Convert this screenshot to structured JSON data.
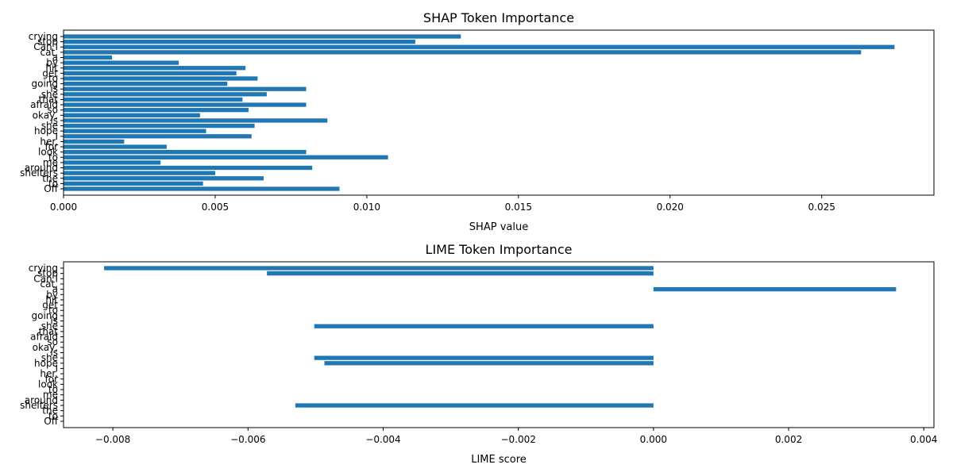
{
  "chart_data": [
    {
      "type": "bar",
      "orientation": "horizontal",
      "title": "SHAP Token Importance",
      "xlabel": "SHAP value",
      "ylabel": "",
      "xlim": [
        0,
        0.0287
      ],
      "xticks": [
        "0.000",
        "0.005",
        "0.010",
        "0.015",
        "0.020",
        "0.025"
      ],
      "xtick_values": [
        0,
        0.005,
        0.01,
        0.015,
        0.02,
        0.025
      ],
      "grid": false,
      "bar_color": "#1f77b4",
      "categories": [
        "crying",
        "stop",
        "Can I",
        "cat,",
        "a",
        "by",
        "hit",
        "get",
        "to",
        "going",
        "is",
        "she",
        "that",
        "afraid",
        "so",
        "okay,",
        "is",
        "she",
        "hope",
        "I",
        "her.",
        "for",
        "look",
        "to",
        "me",
        "around",
        "shelters",
        "the",
        "to",
        "Off"
      ],
      "values": [
        0.0131,
        0.0116,
        0.0274,
        0.0263,
        0.0016,
        0.0038,
        0.006,
        0.0057,
        0.0064,
        0.0054,
        0.008,
        0.0067,
        0.0059,
        0.008,
        0.0061,
        0.0045,
        0.0087,
        0.0063,
        0.0047,
        0.0062,
        0.002,
        0.0034,
        0.008,
        0.0107,
        0.0032,
        0.0082,
        0.005,
        0.0066,
        0.0046,
        0.0091
      ]
    },
    {
      "type": "bar",
      "orientation": "horizontal",
      "title": "LIME Token Importance",
      "xlabel": "LIME score",
      "ylabel": "",
      "xlim": [
        -0.00873,
        0.00415
      ],
      "xticks": [
        "−0.008",
        "−0.006",
        "−0.004",
        "−0.002",
        "0.000",
        "0.002",
        "0.004"
      ],
      "xtick_values": [
        -0.008,
        -0.006,
        -0.004,
        -0.002,
        0,
        0.002,
        0.004
      ],
      "grid": false,
      "bar_color": "#1f77b4",
      "categories": [
        "crying",
        "stop",
        "Can I",
        "cat,",
        "a",
        "by",
        "hit",
        "get",
        "to",
        "going",
        "is",
        "she",
        "that",
        "afraid",
        "so",
        "okay,",
        "is",
        "she",
        "hope",
        "I",
        "her.",
        "for",
        "look",
        "to",
        "me",
        "around",
        "shelters",
        "the",
        "to",
        "Off"
      ],
      "values": [
        -0.00813,
        -0.00572,
        0,
        0,
        0.00359,
        0,
        0,
        0,
        0,
        0,
        0,
        -0.00502,
        0,
        0,
        0,
        0,
        0,
        -0.00502,
        -0.00487,
        0,
        0,
        0,
        0,
        0,
        0,
        0,
        -0.0053,
        0,
        0,
        0
      ]
    }
  ]
}
